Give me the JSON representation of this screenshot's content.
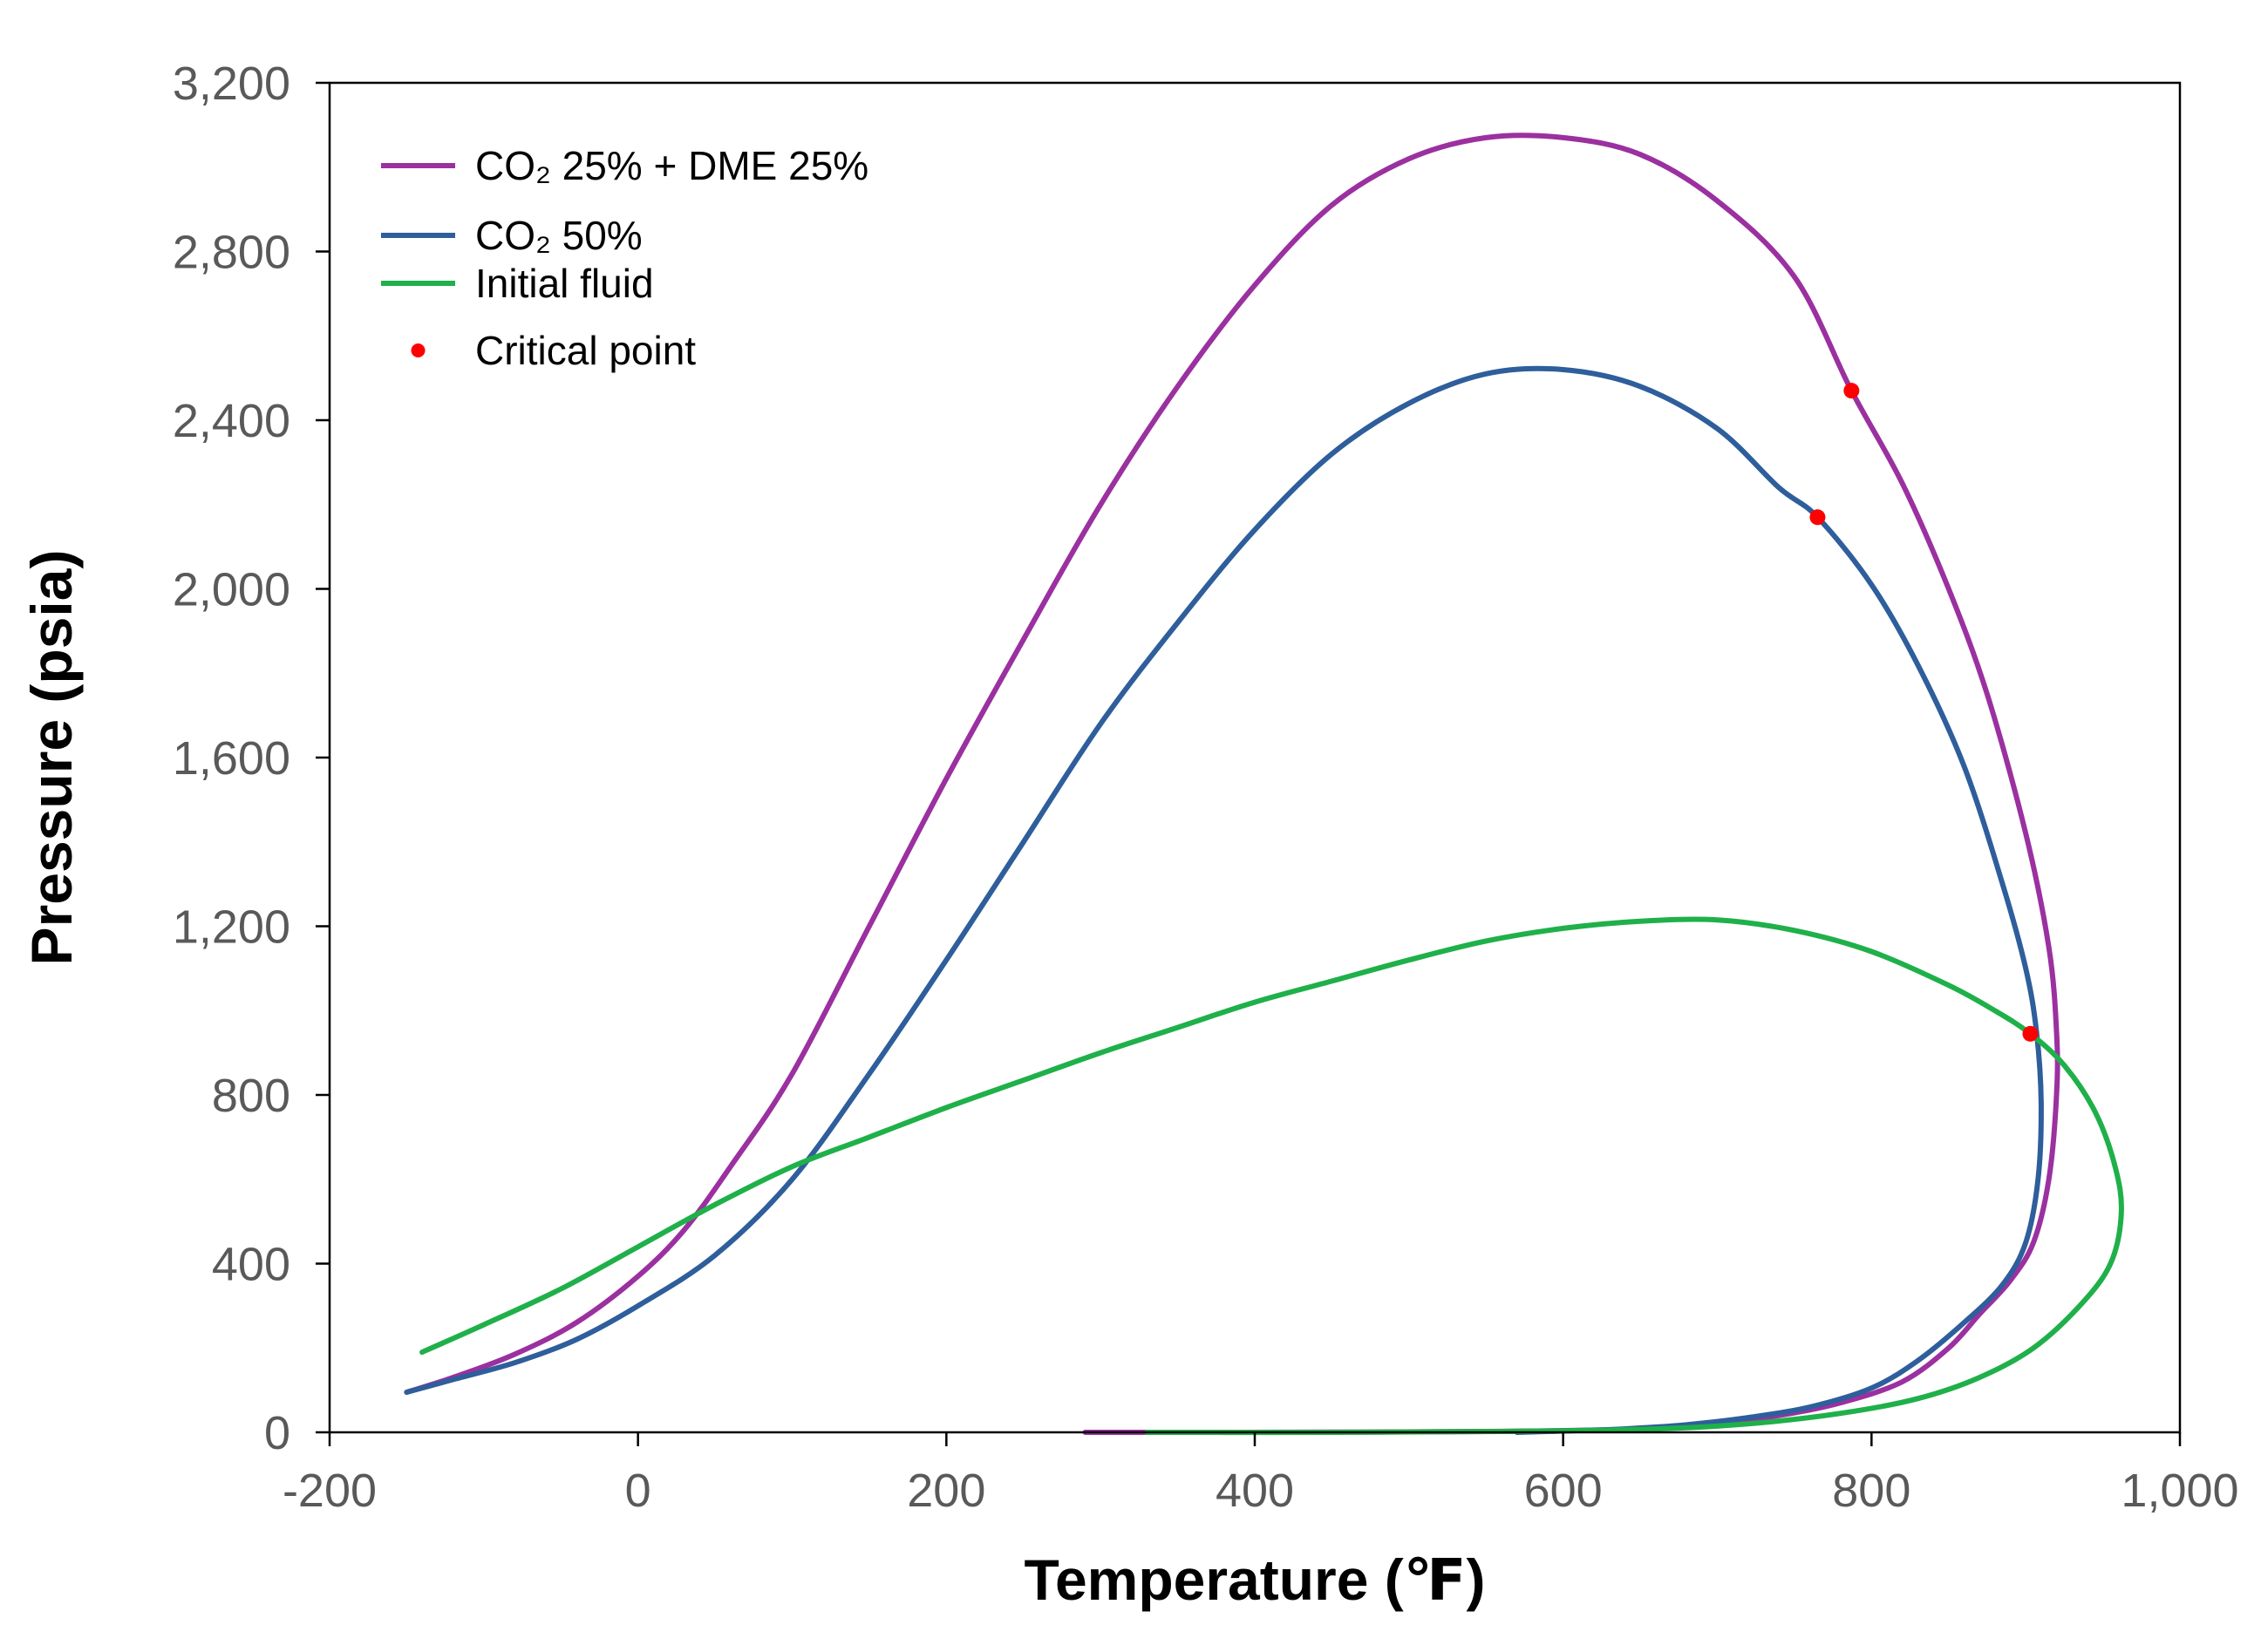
{
  "chart_data": {
    "type": "line",
    "title": "",
    "xlabel": "Temperature (℉)",
    "ylabel": "Pressure (psia)",
    "xlim": [
      -200,
      1000
    ],
    "ylim": [
      0,
      3200
    ],
    "x_ticks": [
      -200,
      0,
      200,
      400,
      600,
      800,
      1000
    ],
    "y_ticks": [
      0,
      400,
      800,
      1200,
      1600,
      2000,
      2400,
      2800,
      3200
    ],
    "x_tick_labels": [
      "-200",
      "0",
      "200",
      "400",
      "600",
      "800",
      "1,000"
    ],
    "y_tick_labels": [
      "0",
      "400",
      "800",
      "1,200",
      "1,600",
      "2,000",
      "2,400",
      "2,800",
      "3,200"
    ],
    "grid": false,
    "legend_position": "top-left",
    "series": [
      {
        "name": "CO₂ 25% + DME 25%",
        "color": "#9B30A0",
        "points": [
          [
            -150,
            95
          ],
          [
            -120,
            130
          ],
          [
            -80,
            185
          ],
          [
            -40,
            260
          ],
          [
            0,
            370
          ],
          [
            30,
            480
          ],
          [
            60,
            630
          ],
          [
            100,
            850
          ],
          [
            150,
            1200
          ],
          [
            200,
            1550
          ],
          [
            250,
            1880
          ],
          [
            300,
            2200
          ],
          [
            350,
            2480
          ],
          [
            400,
            2720
          ],
          [
            450,
            2910
          ],
          [
            500,
            3020
          ],
          [
            550,
            3070
          ],
          [
            600,
            3070
          ],
          [
            650,
            3030
          ],
          [
            700,
            2920
          ],
          [
            750,
            2740
          ],
          [
            787,
            2470
          ],
          [
            820,
            2250
          ],
          [
            850,
            2000
          ],
          [
            875,
            1750
          ],
          [
            900,
            1420
          ],
          [
            915,
            1150
          ],
          [
            920,
            950
          ],
          [
            920,
            800
          ],
          [
            915,
            600
          ],
          [
            905,
            450
          ],
          [
            890,
            360
          ],
          [
            870,
            280
          ],
          [
            850,
            200
          ],
          [
            820,
            120
          ],
          [
            780,
            70
          ],
          [
            740,
            40
          ],
          [
            700,
            20
          ],
          [
            650,
            8
          ],
          [
            550,
            2
          ],
          [
            400,
            0
          ],
          [
            290,
            0
          ]
        ]
      },
      {
        "name": "CO₂ 50%",
        "color": "#2E5E9B",
        "points": [
          [
            -150,
            95
          ],
          [
            -120,
            125
          ],
          [
            -80,
            165
          ],
          [
            -40,
            220
          ],
          [
            0,
            300
          ],
          [
            50,
            420
          ],
          [
            100,
            600
          ],
          [
            150,
            850
          ],
          [
            200,
            1120
          ],
          [
            250,
            1400
          ],
          [
            300,
            1680
          ],
          [
            350,
            1920
          ],
          [
            400,
            2140
          ],
          [
            450,
            2320
          ],
          [
            500,
            2440
          ],
          [
            550,
            2510
          ],
          [
            600,
            2520
          ],
          [
            650,
            2480
          ],
          [
            700,
            2380
          ],
          [
            740,
            2240
          ],
          [
            765,
            2170
          ],
          [
            800,
            2010
          ],
          [
            830,
            1820
          ],
          [
            860,
            1580
          ],
          [
            885,
            1300
          ],
          [
            900,
            1100
          ],
          [
            907,
            950
          ],
          [
            910,
            780
          ],
          [
            908,
            600
          ],
          [
            900,
            450
          ],
          [
            885,
            350
          ],
          [
            860,
            260
          ],
          [
            830,
            170
          ],
          [
            800,
            105
          ],
          [
            760,
            60
          ],
          [
            720,
            35
          ],
          [
            680,
            18
          ],
          [
            640,
            8
          ],
          [
            600,
            3
          ],
          [
            570,
            0
          ]
        ]
      },
      {
        "name": "Initial fluid",
        "color": "#1FB04A",
        "points": [
          [
            -140,
            190
          ],
          [
            -100,
            255
          ],
          [
            -50,
            340
          ],
          [
            0,
            440
          ],
          [
            50,
            540
          ],
          [
            100,
            630
          ],
          [
            150,
            700
          ],
          [
            200,
            770
          ],
          [
            250,
            835
          ],
          [
            300,
            900
          ],
          [
            350,
            960
          ],
          [
            400,
            1020
          ],
          [
            450,
            1070
          ],
          [
            500,
            1120
          ],
          [
            550,
            1165
          ],
          [
            600,
            1195
          ],
          [
            650,
            1212
          ],
          [
            700,
            1215
          ],
          [
            750,
            1190
          ],
          [
            800,
            1140
          ],
          [
            850,
            1060
          ],
          [
            880,
            1000
          ],
          [
            903,
            945
          ],
          [
            925,
            870
          ],
          [
            945,
            760
          ],
          [
            958,
            630
          ],
          [
            962,
            520
          ],
          [
            955,
            400
          ],
          [
            935,
            300
          ],
          [
            905,
            200
          ],
          [
            870,
            130
          ],
          [
            830,
            80
          ],
          [
            780,
            45
          ],
          [
            720,
            20
          ],
          [
            660,
            8
          ],
          [
            560,
            2
          ],
          [
            450,
            0
          ],
          [
            330,
            0
          ]
        ]
      }
    ],
    "critical_point": {
      "name": "Critical point",
      "color": "#FF0000",
      "points": [
        [
          787,
          2470
        ],
        [
          765,
          2170
        ],
        [
          903,
          945
        ]
      ]
    }
  }
}
